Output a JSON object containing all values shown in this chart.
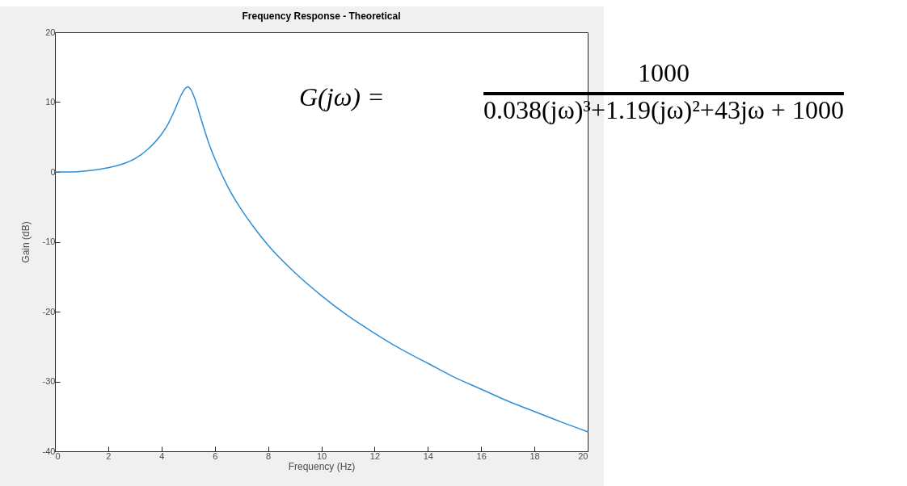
{
  "chart_data": {
    "type": "line",
    "title": "Frequency Response - Theoretical",
    "xlabel": "Frequency (Hz)",
    "ylabel": "Gain (dB)",
    "x": [
      0,
      0.5,
      1,
      1.5,
      2,
      2.5,
      3,
      3.5,
      4,
      4.25,
      4.5,
      4.75,
      4.9,
      5,
      5.1,
      5.25,
      5.5,
      5.75,
      6,
      6.5,
      7,
      7.5,
      8,
      9,
      10,
      11,
      12,
      13,
      14,
      15,
      16,
      17,
      18,
      19,
      20
    ],
    "series": [
      {
        "color": "#2e8fd6",
        "values": [
          0,
          0.0,
          0.1,
          0.3,
          0.6,
          1.1,
          1.9,
          3.3,
          5.4,
          6.9,
          8.9,
          11.1,
          12.0,
          12.2,
          11.8,
          10.5,
          7.4,
          4.4,
          1.9,
          -2.2,
          -5.4,
          -8.1,
          -10.5,
          -14.4,
          -17.7,
          -20.6,
          -23.1,
          -25.4,
          -27.4,
          -29.4,
          -31.1,
          -32.8,
          -34.3,
          -35.8,
          -37.2
        ]
      }
    ],
    "xlim": [
      0,
      20
    ],
    "ylim": [
      -40,
      20
    ],
    "xticks": [
      0,
      2,
      4,
      6,
      8,
      10,
      12,
      14,
      16,
      18,
      20
    ],
    "yticks": [
      -40,
      -30,
      -20,
      -10,
      0,
      10,
      20
    ],
    "grid": false,
    "annotations": [
      "G(jω) =",
      "1000",
      "0.038(jω)³+1.19(jω)²+43jω + 1000"
    ]
  }
}
